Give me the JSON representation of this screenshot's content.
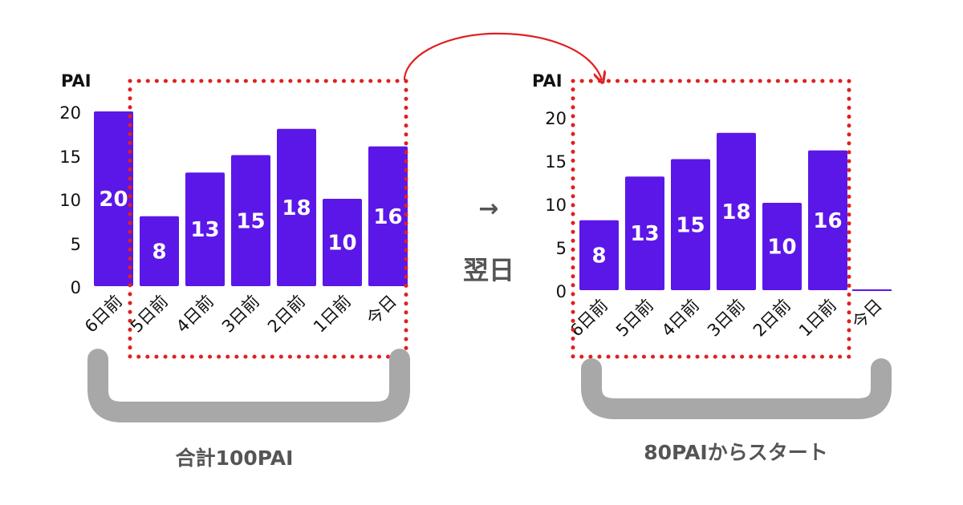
{
  "colors": {
    "bar": "#5b17e8",
    "dotted_box": "#e02020",
    "bracket": "#a8a8a8",
    "caption_text": "#555555"
  },
  "icons": {
    "arrow": "curved-arrow-icon",
    "right_arrow": "right-arrow-icon",
    "bracket": "bracket-icon"
  },
  "transition": {
    "arrow_glyph": "→",
    "label": "翌日"
  },
  "chart_data": [
    {
      "type": "bar",
      "ylabel": "PAI",
      "ylim": [
        0,
        20
      ],
      "yticks": [
        0,
        5,
        10,
        15,
        20
      ],
      "categories": [
        "6日前",
        "5日前",
        "4日前",
        "3日前",
        "2日前",
        "1日前",
        "今日"
      ],
      "values": [
        20,
        8,
        13,
        15,
        18,
        10,
        16
      ],
      "data_labels": [
        "20",
        "8",
        "13",
        "15",
        "18",
        "10",
        "16"
      ],
      "highlighted_categories": [
        "5日前",
        "4日前",
        "3日前",
        "2日前",
        "1日前",
        "今日"
      ],
      "caption": "合計100PAI"
    },
    {
      "type": "bar",
      "ylabel": "PAI",
      "ylim": [
        0,
        20
      ],
      "yticks": [
        0,
        5,
        10,
        15,
        20
      ],
      "categories": [
        "6日前",
        "5日前",
        "4日前",
        "3日前",
        "2日前",
        "1日前",
        "今日"
      ],
      "values": [
        8,
        13,
        15,
        18,
        10,
        16,
        0
      ],
      "data_labels": [
        "8",
        "13",
        "15",
        "18",
        "10",
        "16",
        ""
      ],
      "highlighted_categories": [
        "6日前",
        "5日前",
        "4日前",
        "3日前",
        "2日前",
        "1日前"
      ],
      "caption": "80PAIからスタート"
    }
  ]
}
